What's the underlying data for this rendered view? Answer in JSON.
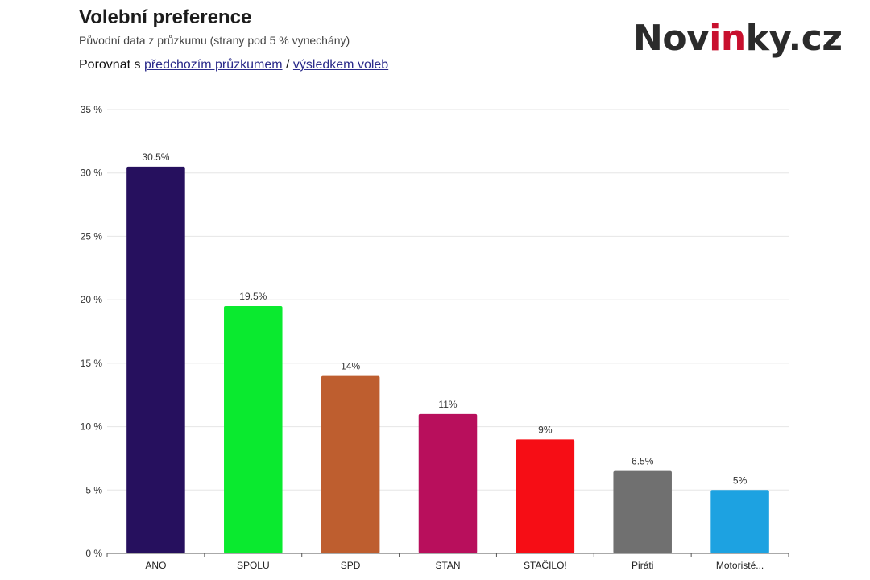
{
  "header": {
    "title": "Volební preference",
    "subtitle": "Původní data z průzkumu (strany pod 5 % vynechány)",
    "compare_prefix": "Porovnat s",
    "link_previous": "předchozím průzkumem",
    "separator": "/",
    "link_election": "výsledkem voleb"
  },
  "logo": {
    "part1": "Nov",
    "part2": "in",
    "part3": "ky.cz"
  },
  "chart_data": {
    "type": "bar",
    "title": "Volební preference",
    "categories": [
      "ANO",
      "SPOLU",
      "SPD",
      "STAN",
      "STAČILO!",
      "Piráti",
      "Motoristé..."
    ],
    "values": [
      30.5,
      19.5,
      14,
      11,
      9,
      6.5,
      5
    ],
    "data_labels": [
      "30.5%",
      "19.5%",
      "14%",
      "11%",
      "9%",
      "6.5%",
      "5%"
    ],
    "colors": [
      "#26105e",
      "#0aea2f",
      "#be5e2f",
      "#b80f5c",
      "#f60d15",
      "#707070",
      "#1da2e1"
    ],
    "yticks": [
      0,
      5,
      10,
      15,
      20,
      25,
      30,
      35
    ],
    "ytick_labels": [
      "0 %",
      "5 %",
      "10 %",
      "15 %",
      "20 %",
      "25 %",
      "30 %",
      "35 %"
    ],
    "ylim": [
      0,
      35
    ],
    "grid": true,
    "legend": "none"
  }
}
